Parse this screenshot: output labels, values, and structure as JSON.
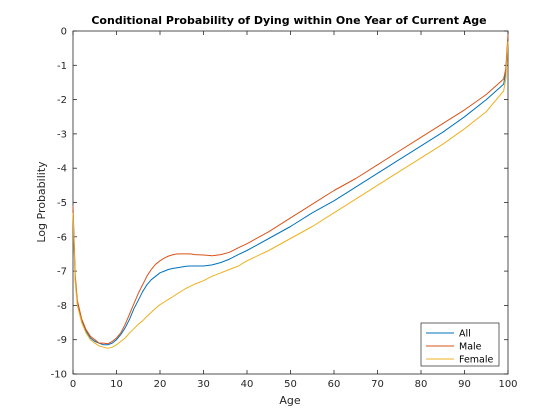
{
  "chart_data": {
    "type": "line",
    "title": "Conditional Probability of Dying within One Year of Current Age",
    "xlabel": "Age",
    "ylabel": "Log Probability",
    "xlim": [
      0,
      100
    ],
    "ylim": [
      -10,
      0
    ],
    "xticks": [
      0,
      10,
      20,
      30,
      40,
      50,
      60,
      70,
      80,
      90,
      100
    ],
    "yticks": [
      0,
      -1,
      -2,
      -3,
      -4,
      -5,
      -6,
      -7,
      -8,
      -9,
      -10
    ],
    "grid": false,
    "legend_position": "bottom-right",
    "series": [
      {
        "name": "All",
        "color": "#0072BD",
        "x": [
          0,
          0.5,
          1,
          2,
          3,
          4,
          5,
          6,
          7,
          8,
          9,
          10,
          11,
          12,
          13,
          14,
          15,
          16,
          17,
          18,
          19,
          20,
          21,
          22,
          23,
          24,
          25,
          26,
          27,
          28,
          30,
          32,
          34,
          36,
          38,
          40,
          45,
          50,
          55,
          60,
          65,
          70,
          75,
          80,
          85,
          90,
          95,
          99,
          99.5,
          100
        ],
        "y": [
          -5.2,
          -7.2,
          -7.9,
          -8.45,
          -8.75,
          -8.95,
          -9.05,
          -9.1,
          -9.15,
          -9.15,
          -9.1,
          -9.0,
          -8.85,
          -8.65,
          -8.4,
          -8.1,
          -7.85,
          -7.6,
          -7.4,
          -7.25,
          -7.15,
          -7.05,
          -7.0,
          -6.95,
          -6.92,
          -6.9,
          -6.88,
          -6.86,
          -6.85,
          -6.85,
          -6.85,
          -6.82,
          -6.75,
          -6.65,
          -6.52,
          -6.4,
          -6.05,
          -5.7,
          -5.3,
          -4.95,
          -4.55,
          -4.15,
          -3.75,
          -3.35,
          -2.95,
          -2.5,
          -2.0,
          -1.55,
          -1.2,
          -0.2
        ]
      },
      {
        "name": "Male",
        "color": "#D95319",
        "x": [
          0,
          0.5,
          1,
          2,
          3,
          4,
          5,
          6,
          7,
          8,
          9,
          10,
          11,
          12,
          13,
          14,
          15,
          16,
          17,
          18,
          19,
          20,
          21,
          22,
          23,
          24,
          25,
          26,
          27,
          28,
          30,
          32,
          34,
          36,
          38,
          40,
          45,
          50,
          55,
          60,
          65,
          70,
          75,
          80,
          85,
          90,
          95,
          99,
          99.5,
          100
        ],
        "y": [
          -5.1,
          -7.1,
          -7.85,
          -8.4,
          -8.7,
          -8.9,
          -9.0,
          -9.1,
          -9.1,
          -9.12,
          -9.05,
          -8.95,
          -8.8,
          -8.55,
          -8.25,
          -7.95,
          -7.65,
          -7.4,
          -7.15,
          -6.95,
          -6.8,
          -6.7,
          -6.62,
          -6.56,
          -6.52,
          -6.5,
          -6.5,
          -6.5,
          -6.5,
          -6.52,
          -6.53,
          -6.55,
          -6.52,
          -6.45,
          -6.32,
          -6.2,
          -5.85,
          -5.45,
          -5.05,
          -4.65,
          -4.3,
          -3.9,
          -3.5,
          -3.1,
          -2.7,
          -2.3,
          -1.85,
          -1.4,
          -1.1,
          -0.1
        ]
      },
      {
        "name": "Female",
        "color": "#EDB120",
        "x": [
          0,
          0.5,
          1,
          2,
          3,
          4,
          5,
          6,
          7,
          8,
          9,
          10,
          11,
          12,
          13,
          14,
          15,
          16,
          17,
          18,
          19,
          20,
          21,
          22,
          23,
          24,
          25,
          26,
          27,
          28,
          30,
          32,
          34,
          36,
          38,
          40,
          45,
          50,
          55,
          60,
          65,
          70,
          75,
          80,
          85,
          90,
          95,
          99,
          99.5,
          100
        ],
        "y": [
          -5.3,
          -7.3,
          -8.0,
          -8.5,
          -8.8,
          -9.0,
          -9.1,
          -9.18,
          -9.22,
          -9.25,
          -9.22,
          -9.15,
          -9.05,
          -8.95,
          -8.8,
          -8.68,
          -8.55,
          -8.45,
          -8.32,
          -8.2,
          -8.08,
          -7.98,
          -7.9,
          -7.82,
          -7.74,
          -7.66,
          -7.58,
          -7.5,
          -7.44,
          -7.38,
          -7.28,
          -7.15,
          -7.05,
          -6.95,
          -6.85,
          -6.7,
          -6.4,
          -6.05,
          -5.7,
          -5.3,
          -4.9,
          -4.5,
          -4.1,
          -3.7,
          -3.3,
          -2.85,
          -2.35,
          -1.75,
          -1.4,
          -0.3
        ]
      }
    ]
  }
}
